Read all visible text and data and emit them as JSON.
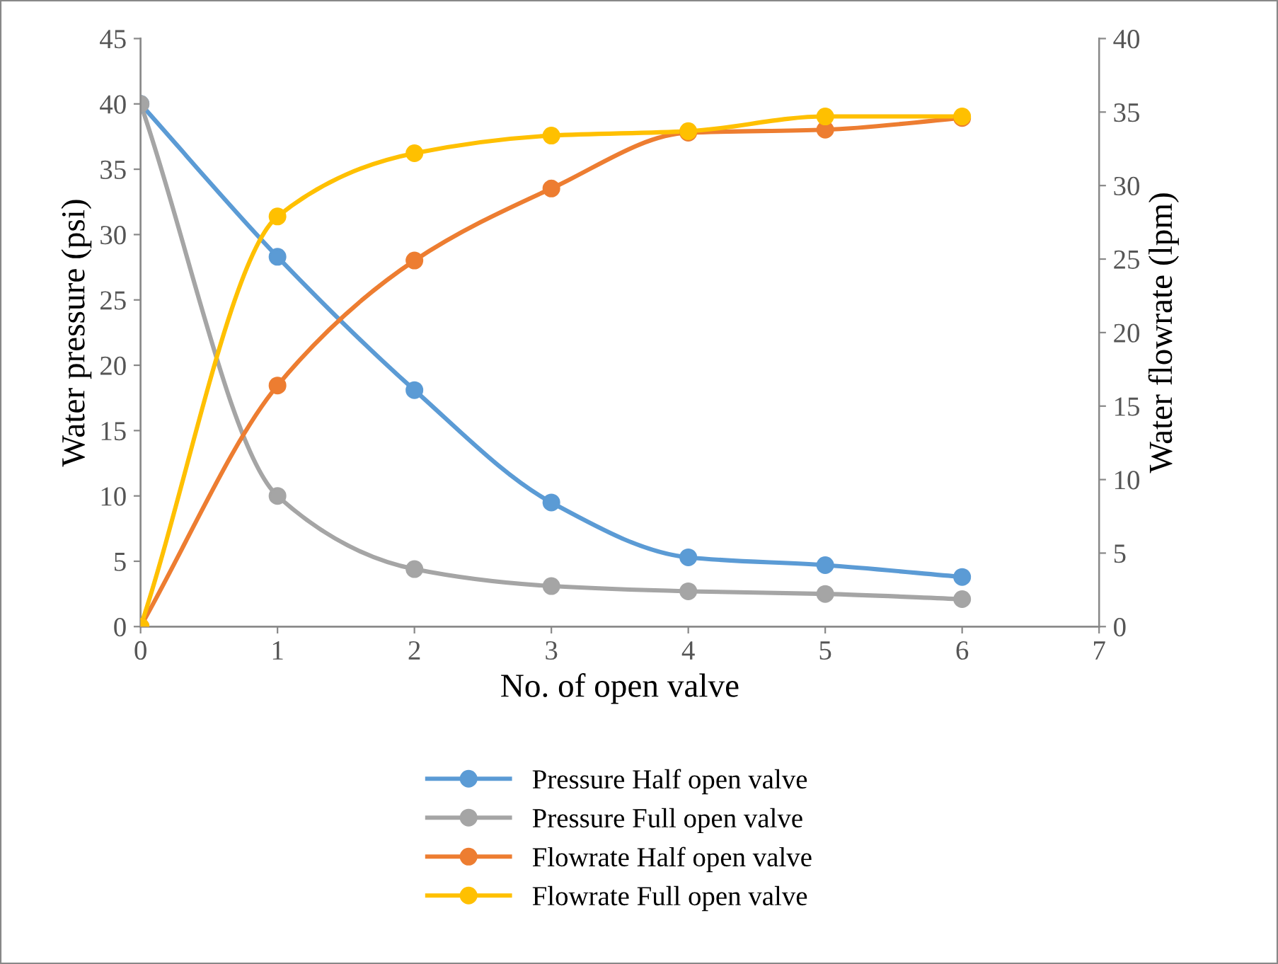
{
  "chart_data": {
    "type": "line",
    "xlabel": "No. of open valve",
    "ylabel": "Water pressure (psi)",
    "y2label": "Water flowrate (lpm)",
    "x": [
      0,
      1,
      2,
      3,
      4,
      5,
      6
    ],
    "xlim": [
      0,
      7
    ],
    "xticks": [
      0,
      1,
      2,
      3,
      4,
      5,
      6,
      7
    ],
    "ylim": [
      0,
      45
    ],
    "yticks": [
      0,
      5,
      10,
      15,
      20,
      25,
      30,
      35,
      40,
      45
    ],
    "y2lim": [
      0,
      40
    ],
    "y2ticks": [
      0,
      5,
      10,
      15,
      20,
      25,
      30,
      35,
      40
    ],
    "marker": "circle",
    "line_style": "solid",
    "legend": "bottom",
    "grid": false,
    "series": [
      {
        "name": "Pressure Half open valve",
        "color": "#5b9bd5",
        "values": [
          40,
          28.3,
          18.1,
          9.5,
          5.3,
          4.7,
          3.8
        ]
      },
      {
        "name": "Pressure Full open valve",
        "color": "#a5a5a5",
        "values": [
          40,
          10.0,
          4.4,
          3.1,
          2.7,
          2.5,
          2.1
        ]
      },
      {
        "name": "Flowrate Half open valve",
        "color": "#ed7d31",
        "axis": "y2",
        "values": [
          0,
          16.4,
          24.9,
          29.8,
          33.6,
          33.8,
          34.6
        ]
      },
      {
        "name": "Flowrate Full open valve",
        "color": "#ffc000",
        "axis": "y2",
        "values": [
          0,
          27.9,
          32.2,
          33.4,
          33.7,
          34.7,
          34.7
        ]
      }
    ]
  }
}
